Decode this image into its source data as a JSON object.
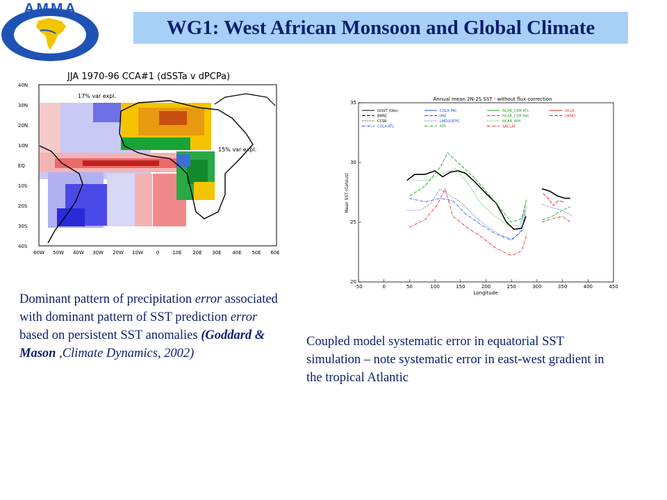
{
  "header": {
    "title": "WG1: West African Monsoon and Global Climate",
    "logo_text": "AMMA"
  },
  "left_figure": {
    "title": "JJA 1970-96 CCA#1 (dSSTa v dPCPa)",
    "annotation_a": "17% var expl.",
    "annotation_b": "15% var expl.",
    "lat_labels": [
      "40N",
      "30N",
      "20N",
      "10N",
      "EQ",
      "10S",
      "20S",
      "30S",
      "40S"
    ],
    "lon_labels": [
      "60W",
      "50W",
      "40W",
      "30W",
      "20W",
      "10W",
      "0",
      "10E",
      "20E",
      "30E",
      "40E",
      "50E",
      "60E"
    ]
  },
  "right_figure": {
    "chart_data": {
      "type": "line",
      "title": "Annual mean 2N-2S SST - without flux correction",
      "xlabel": "Longitude",
      "ylabel": "Mean SST (Celsius)",
      "xlim": [
        -50,
        450
      ],
      "ylim": [
        20,
        35
      ],
      "xticks": [
        "-50",
        "0",
        "50",
        "100",
        "150",
        "200",
        "250",
        "300",
        "350",
        "400",
        "450"
      ],
      "yticks": [
        "20",
        "25",
        "30",
        "35"
      ],
      "legend": [
        {
          "name": "GISST (Obs)",
          "color": "#000000"
        },
        {
          "name": "BMRC",
          "color": "#000000"
        },
        {
          "name": "CCSR",
          "color": "#000000"
        },
        {
          "name": "COLA ATL",
          "color": "#1f4fd8"
        },
        {
          "name": "COLA PAC",
          "color": "#1f4fd8"
        },
        {
          "name": "JMA",
          "color": "#1f4fd8"
        },
        {
          "name": "LMD/LODYC",
          "color": "#1f4fd8"
        },
        {
          "name": "MPI",
          "color": "#1fa51f"
        },
        {
          "name": "NCAR_CSM ATL",
          "color": "#1fa51f"
        },
        {
          "name": "NCAR_CSM PAC",
          "color": "#1fa51f"
        },
        {
          "name": "NCAR_WM",
          "color": "#1fa51f"
        },
        {
          "name": "SACLAY",
          "color": "#e02020"
        },
        {
          "name": "UCLA",
          "color": "#e02020"
        },
        {
          "name": "UKMO",
          "color": "#e02020"
        }
      ],
      "series": [
        {
          "name": "GISST (Obs)",
          "color": "#000000",
          "segments": [
            [
              [
                45,
                28.5
              ],
              [
                60,
                29
              ],
              [
                80,
                29
              ],
              [
                100,
                29.3
              ],
              [
                115,
                28.8
              ],
              [
                130,
                29.2
              ],
              [
                145,
                29.3
              ],
              [
                160,
                29.1
              ],
              [
                180,
                28.3
              ],
              [
                200,
                27.4
              ],
              [
                220,
                26.6
              ],
              [
                240,
                25
              ],
              [
                255,
                24.4
              ],
              [
                270,
                24.5
              ],
              [
                278,
                25.5
              ]
            ],
            [
              [
                310,
                27.8
              ],
              [
                325,
                27.6
              ],
              [
                340,
                27.2
              ],
              [
                355,
                27
              ],
              [
                365,
                27
              ]
            ]
          ]
        },
        {
          "name": "COLA ATL",
          "color": "#1f4fd8",
          "segments": [
            [
              [
                45,
                26
              ],
              [
                70,
                26
              ],
              [
                90,
                26.5
              ],
              [
                110,
                27.8
              ],
              [
                130,
                27.2
              ],
              [
                150,
                26.7
              ],
              [
                175,
                25.6
              ],
              [
                200,
                24.7
              ],
              [
                225,
                24
              ],
              [
                250,
                23.6
              ],
              [
                265,
                24
              ],
              [
                278,
                26.5
              ]
            ],
            [
              [
                310,
                26.5
              ],
              [
                330,
                26.2
              ],
              [
                350,
                26
              ],
              [
                370,
                25.5
              ]
            ]
          ]
        },
        {
          "name": "JMA",
          "color": "#1f4fd8",
          "segments": [
            [
              [
                50,
                27
              ],
              [
                80,
                26.7
              ],
              [
                110,
                27
              ],
              [
                135,
                26.8
              ],
              [
                160,
                25.7
              ],
              [
                190,
                24.8
              ],
              [
                220,
                24
              ],
              [
                250,
                23.5
              ],
              [
                270,
                24.3
              ],
              [
                278,
                26
              ]
            ]
          ]
        },
        {
          "name": "MPI",
          "color": "#1fa51f",
          "segments": [
            [
              [
                50,
                27.2
              ],
              [
                80,
                28
              ],
              [
                110,
                29.6
              ],
              [
                125,
                30.8
              ],
              [
                150,
                29.8
              ],
              [
                175,
                28.8
              ],
              [
                200,
                27.6
              ],
              [
                225,
                26.3
              ],
              [
                250,
                25
              ],
              [
                270,
                25.3
              ],
              [
                280,
                27
              ]
            ],
            [
              [
                310,
                25.2
              ],
              [
                330,
                25.5
              ],
              [
                350,
                26
              ],
              [
                365,
                26.3
              ]
            ]
          ]
        },
        {
          "name": "NCAR_CSM ATL",
          "color": "#1fa51f",
          "segments": [
            [
              [
                55,
                28.5
              ],
              [
                85,
                28.5
              ],
              [
                110,
                29
              ],
              [
                140,
                29.5
              ],
              [
                165,
                28.2
              ],
              [
                190,
                26.6
              ],
              [
                215,
                25.6
              ],
              [
                240,
                24.8
              ],
              [
                265,
                24.7
              ],
              [
                280,
                26.3
              ]
            ]
          ]
        },
        {
          "name": "SACLAY",
          "color": "#e02020",
          "segments": [
            [
              [
                50,
                24.6
              ],
              [
                80,
                25.2
              ],
              [
                105,
                26.5
              ],
              [
                120,
                27.8
              ],
              [
                135,
                25.5
              ],
              [
                165,
                24.5
              ],
              [
                190,
                23.8
              ],
              [
                220,
                22.8
              ],
              [
                250,
                22.2
              ],
              [
                270,
                22.6
              ],
              [
                280,
                24
              ]
            ],
            [
              [
                310,
                25
              ],
              [
                330,
                25.3
              ],
              [
                350,
                25.5
              ],
              [
                365,
                25
              ]
            ]
          ]
        },
        {
          "name": "UKMO",
          "color": "#e02020",
          "segments": [
            [
              [
                312,
                27.4
              ],
              [
                322,
                27
              ],
              [
                332,
                26.4
              ],
              [
                342,
                26.8
              ],
              [
                352,
                26.7
              ]
            ]
          ]
        }
      ]
    }
  },
  "captions": {
    "left_1": "Dominant pattern of precipitation ",
    "left_2": "error",
    "left_3": " associated with dominant pattern of SST prediction ",
    "left_4": "error",
    "left_5": " based on persistent SST anomalies ",
    "left_6": "(Goddard & Mason",
    "left_7": " ,Climate Dynamics, 2002)",
    "right": "Coupled model systematic error in equatorial SST simulation – note systematic error in east-west gradient in the tropical Atlantic"
  }
}
